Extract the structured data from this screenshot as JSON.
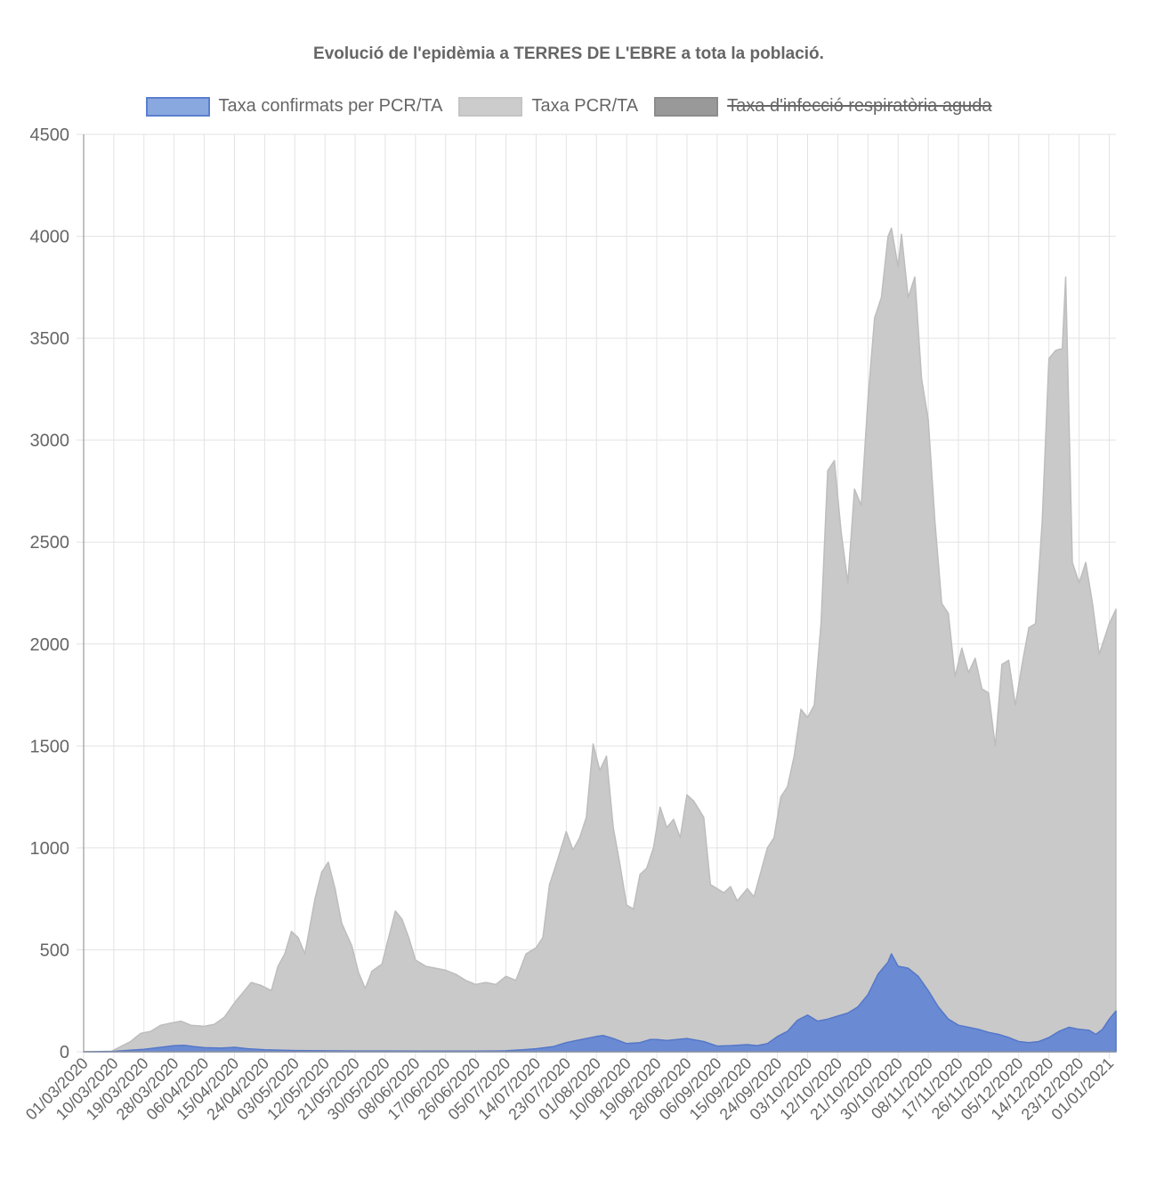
{
  "title": "Evolució de l'epidèmia a TERRES DE L'EBRE a tota la població.",
  "legend": [
    {
      "label": "Taxa confirmats per PCR/TA",
      "color": "#8aa8e0",
      "border": "#5b7fcf",
      "hidden": false
    },
    {
      "label": "Taxa PCR/TA",
      "color": "#cccccc",
      "border": "#c4c4c4",
      "hidden": false
    },
    {
      "label": "Taxa d'infecció respiratòria aguda",
      "color": "#999999",
      "border": "#8c8c8c",
      "hidden": true
    }
  ],
  "chart_data": {
    "type": "area",
    "title": "Evolució de l'epidèmia a TERRES DE L'EBRE a tota la població.",
    "xlabel": "",
    "ylabel": "",
    "ylim": [
      0,
      4500
    ],
    "yticks": [
      0,
      500,
      1000,
      1500,
      2000,
      2500,
      3000,
      3500,
      4000,
      4500
    ],
    "x_start": "01/03/2020",
    "x_end": "03/01/2021",
    "xticks": [
      "01/03/2020",
      "10/03/2020",
      "19/03/2020",
      "28/03/2020",
      "06/04/2020",
      "15/04/2020",
      "24/04/2020",
      "03/05/2020",
      "12/05/2020",
      "21/05/2020",
      "30/05/2020",
      "08/06/2020",
      "17/06/2020",
      "26/06/2020",
      "05/07/2020",
      "14/07/2020",
      "23/07/2020",
      "01/08/2020",
      "10/08/2020",
      "19/08/2020",
      "28/08/2020",
      "06/09/2020",
      "15/09/2020",
      "24/09/2020",
      "03/10/2020",
      "12/10/2020",
      "21/10/2020",
      "30/10/2020",
      "08/11/2020",
      "17/11/2020",
      "26/11/2020",
      "05/12/2020",
      "14/12/2020",
      "23/12/2020",
      "01/01/2021"
    ],
    "grid": true,
    "legend_position": "top",
    "series": [
      {
        "name": "Taxa confirmats per PCR/TA",
        "color": "#6c8fd6",
        "points": [
          [
            "01/03/2020",
            0
          ],
          [
            "10/03/2020",
            2
          ],
          [
            "15/03/2020",
            8
          ],
          [
            "19/03/2020",
            12
          ],
          [
            "24/03/2020",
            22
          ],
          [
            "28/03/2020",
            30
          ],
          [
            "31/03/2020",
            32
          ],
          [
            "03/04/2020",
            25
          ],
          [
            "06/04/2020",
            20
          ],
          [
            "11/04/2020",
            18
          ],
          [
            "15/04/2020",
            22
          ],
          [
            "19/04/2020",
            15
          ],
          [
            "24/04/2020",
            10
          ],
          [
            "29/04/2020",
            8
          ],
          [
            "03/05/2020",
            6
          ],
          [
            "12/05/2020",
            5
          ],
          [
            "21/05/2020",
            4
          ],
          [
            "30/05/2020",
            4
          ],
          [
            "08/06/2020",
            3
          ],
          [
            "17/06/2020",
            3
          ],
          [
            "26/06/2020",
            3
          ],
          [
            "02/07/2020",
            4
          ],
          [
            "05/07/2020",
            5
          ],
          [
            "10/07/2020",
            10
          ],
          [
            "14/07/2020",
            15
          ],
          [
            "19/07/2020",
            25
          ],
          [
            "23/07/2020",
            45
          ],
          [
            "26/07/2020",
            55
          ],
          [
            "29/07/2020",
            65
          ],
          [
            "01/08/2020",
            75
          ],
          [
            "03/08/2020",
            80
          ],
          [
            "06/08/2020",
            65
          ],
          [
            "10/08/2020",
            40
          ],
          [
            "14/08/2020",
            45
          ],
          [
            "17/08/2020",
            60
          ],
          [
            "19/08/2020",
            60
          ],
          [
            "22/08/2020",
            55
          ],
          [
            "25/08/2020",
            60
          ],
          [
            "28/08/2020",
            65
          ],
          [
            "02/09/2020",
            50
          ],
          [
            "06/09/2020",
            28
          ],
          [
            "10/09/2020",
            30
          ],
          [
            "15/09/2020",
            35
          ],
          [
            "18/09/2020",
            30
          ],
          [
            "21/09/2020",
            40
          ],
          [
            "24/09/2020",
            75
          ],
          [
            "27/09/2020",
            100
          ],
          [
            "30/09/2020",
            155
          ],
          [
            "03/10/2020",
            180
          ],
          [
            "06/10/2020",
            150
          ],
          [
            "09/10/2020",
            160
          ],
          [
            "12/10/2020",
            175
          ],
          [
            "15/10/2020",
            190
          ],
          [
            "18/10/2020",
            220
          ],
          [
            "21/10/2020",
            280
          ],
          [
            "24/10/2020",
            380
          ],
          [
            "27/10/2020",
            440
          ],
          [
            "28/10/2020",
            480
          ],
          [
            "30/10/2020",
            420
          ],
          [
            "02/11/2020",
            410
          ],
          [
            "05/11/2020",
            370
          ],
          [
            "08/11/2020",
            300
          ],
          [
            "11/11/2020",
            220
          ],
          [
            "14/11/2020",
            160
          ],
          [
            "17/11/2020",
            130
          ],
          [
            "20/11/2020",
            120
          ],
          [
            "23/11/2020",
            110
          ],
          [
            "26/11/2020",
            95
          ],
          [
            "29/11/2020",
            85
          ],
          [
            "02/12/2020",
            70
          ],
          [
            "05/12/2020",
            50
          ],
          [
            "08/12/2020",
            45
          ],
          [
            "11/12/2020",
            50
          ],
          [
            "14/12/2020",
            70
          ],
          [
            "17/12/2020",
            100
          ],
          [
            "20/12/2020",
            120
          ],
          [
            "23/12/2020",
            110
          ],
          [
            "26/12/2020",
            105
          ],
          [
            "28/12/2020",
            85
          ],
          [
            "30/12/2020",
            110
          ],
          [
            "01/01/2021",
            160
          ],
          [
            "03/01/2021",
            200
          ]
        ]
      },
      {
        "name": "Taxa PCR/TA",
        "color": "#c8c8c8",
        "points": [
          [
            "01/03/2020",
            0
          ],
          [
            "09/03/2020",
            0
          ],
          [
            "12/03/2020",
            25
          ],
          [
            "15/03/2020",
            50
          ],
          [
            "18/03/2020",
            90
          ],
          [
            "21/03/2020",
            100
          ],
          [
            "24/03/2020",
            130
          ],
          [
            "27/03/2020",
            140
          ],
          [
            "30/03/2020",
            150
          ],
          [
            "02/04/2020",
            130
          ],
          [
            "06/04/2020",
            125
          ],
          [
            "09/04/2020",
            135
          ],
          [
            "12/04/2020",
            170
          ],
          [
            "15/04/2020",
            240
          ],
          [
            "18/04/2020",
            300
          ],
          [
            "20/04/2020",
            340
          ],
          [
            "23/04/2020",
            325
          ],
          [
            "26/04/2020",
            300
          ],
          [
            "28/04/2020",
            420
          ],
          [
            "30/04/2020",
            480
          ],
          [
            "02/05/2020",
            590
          ],
          [
            "04/05/2020",
            560
          ],
          [
            "06/05/2020",
            480
          ],
          [
            "09/05/2020",
            750
          ],
          [
            "11/05/2020",
            880
          ],
          [
            "13/05/2020",
            930
          ],
          [
            "15/05/2020",
            800
          ],
          [
            "17/05/2020",
            630
          ],
          [
            "20/05/2020",
            520
          ],
          [
            "22/05/2020",
            390
          ],
          [
            "24/05/2020",
            310
          ],
          [
            "26/05/2020",
            395
          ],
          [
            "29/05/2020",
            430
          ],
          [
            "31/05/2020",
            560
          ],
          [
            "02/06/2020",
            690
          ],
          [
            "04/06/2020",
            650
          ],
          [
            "06/06/2020",
            560
          ],
          [
            "08/06/2020",
            450
          ],
          [
            "11/06/2020",
            420
          ],
          [
            "14/06/2020",
            410
          ],
          [
            "17/06/2020",
            400
          ],
          [
            "20/06/2020",
            380
          ],
          [
            "23/06/2020",
            350
          ],
          [
            "26/06/2020",
            330
          ],
          [
            "29/06/2020",
            340
          ],
          [
            "02/07/2020",
            330
          ],
          [
            "05/07/2020",
            370
          ],
          [
            "08/07/2020",
            350
          ],
          [
            "11/07/2020",
            480
          ],
          [
            "14/07/2020",
            510
          ],
          [
            "16/07/2020",
            560
          ],
          [
            "18/07/2020",
            820
          ],
          [
            "20/07/2020",
            920
          ],
          [
            "23/07/2020",
            1080
          ],
          [
            "25/07/2020",
            990
          ],
          [
            "27/07/2020",
            1050
          ],
          [
            "29/07/2020",
            1150
          ],
          [
            "31/07/2020",
            1510
          ],
          [
            "02/08/2020",
            1380
          ],
          [
            "04/08/2020",
            1450
          ],
          [
            "06/08/2020",
            1100
          ],
          [
            "08/08/2020",
            920
          ],
          [
            "10/08/2020",
            720
          ],
          [
            "12/08/2020",
            700
          ],
          [
            "14/08/2020",
            870
          ],
          [
            "16/08/2020",
            900
          ],
          [
            "18/08/2020",
            1000
          ],
          [
            "20/08/2020",
            1200
          ],
          [
            "22/08/2020",
            1100
          ],
          [
            "24/08/2020",
            1140
          ],
          [
            "26/08/2020",
            1050
          ],
          [
            "28/08/2020",
            1260
          ],
          [
            "30/08/2020",
            1230
          ],
          [
            "02/09/2020",
            1150
          ],
          [
            "04/09/2020",
            820
          ],
          [
            "06/09/2020",
            800
          ],
          [
            "08/09/2020",
            780
          ],
          [
            "10/09/2020",
            810
          ],
          [
            "12/09/2020",
            740
          ],
          [
            "15/09/2020",
            800
          ],
          [
            "17/09/2020",
            760
          ],
          [
            "19/09/2020",
            880
          ],
          [
            "21/09/2020",
            1000
          ],
          [
            "23/09/2020",
            1050
          ],
          [
            "25/09/2020",
            1250
          ],
          [
            "27/09/2020",
            1300
          ],
          [
            "29/09/2020",
            1450
          ],
          [
            "01/10/2020",
            1680
          ],
          [
            "03/10/2020",
            1640
          ],
          [
            "05/10/2020",
            1700
          ],
          [
            "07/10/2020",
            2100
          ],
          [
            "09/10/2020",
            2850
          ],
          [
            "11/10/2020",
            2900
          ],
          [
            "13/10/2020",
            2550
          ],
          [
            "15/10/2020",
            2300
          ],
          [
            "17/10/2020",
            2760
          ],
          [
            "19/10/2020",
            2680
          ],
          [
            "21/10/2020",
            3200
          ],
          [
            "23/10/2020",
            3600
          ],
          [
            "25/10/2020",
            3700
          ],
          [
            "27/10/2020",
            4000
          ],
          [
            "28/10/2020",
            4040
          ],
          [
            "30/10/2020",
            3850
          ],
          [
            "31/10/2020",
            4010
          ],
          [
            "02/11/2020",
            3700
          ],
          [
            "04/11/2020",
            3800
          ],
          [
            "06/11/2020",
            3300
          ],
          [
            "08/11/2020",
            3100
          ],
          [
            "10/11/2020",
            2600
          ],
          [
            "12/11/2020",
            2200
          ],
          [
            "14/11/2020",
            2150
          ],
          [
            "16/11/2020",
            1840
          ],
          [
            "18/11/2020",
            1980
          ],
          [
            "20/11/2020",
            1860
          ],
          [
            "22/11/2020",
            1930
          ],
          [
            "24/11/2020",
            1780
          ],
          [
            "26/11/2020",
            1760
          ],
          [
            "28/11/2020",
            1500
          ],
          [
            "30/11/2020",
            1900
          ],
          [
            "02/12/2020",
            1920
          ],
          [
            "04/12/2020",
            1700
          ],
          [
            "06/12/2020",
            1900
          ],
          [
            "08/12/2020",
            2080
          ],
          [
            "10/12/2020",
            2100
          ],
          [
            "12/12/2020",
            2600
          ],
          [
            "14/12/2020",
            3400
          ],
          [
            "16/12/2020",
            3440
          ],
          [
            "18/12/2020",
            3450
          ],
          [
            "19/12/2020",
            3800
          ],
          [
            "21/12/2020",
            2400
          ],
          [
            "23/12/2020",
            2300
          ],
          [
            "25/12/2020",
            2400
          ],
          [
            "27/12/2020",
            2200
          ],
          [
            "29/12/2020",
            1950
          ],
          [
            "01/01/2021",
            2100
          ],
          [
            "03/01/2021",
            2170
          ]
        ]
      }
    ]
  }
}
